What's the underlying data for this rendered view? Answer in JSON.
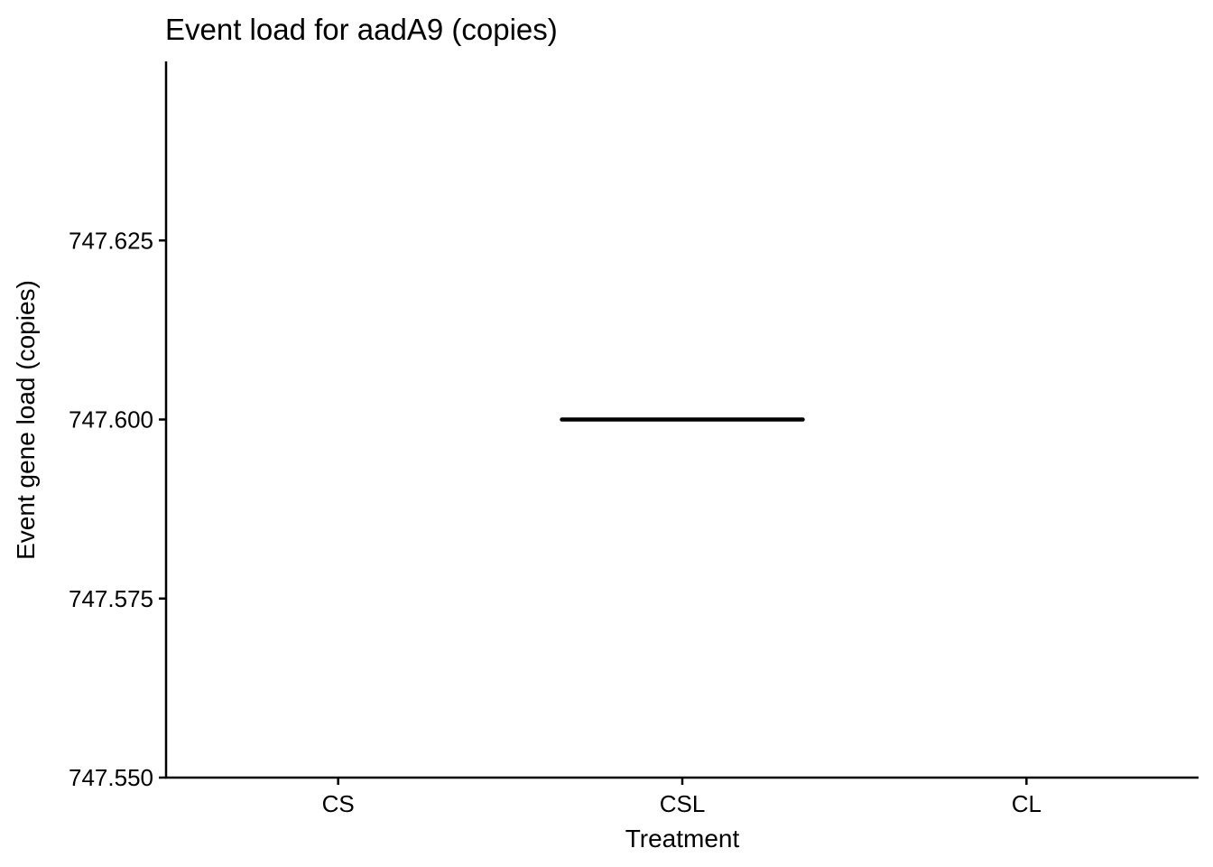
{
  "chart_data": {
    "type": "box",
    "title": "Event load for aadA9 (copies)",
    "xlabel": "Treatment",
    "ylabel": "Event gene load (copies)",
    "categories": [
      "CS",
      "CSL",
      "CL"
    ],
    "ylim": [
      747.55,
      747.65
    ],
    "yticks": [
      747.55,
      747.575,
      747.6,
      747.625
    ],
    "ytick_labels": [
      "747.550",
      "747.575",
      "747.600",
      "747.625"
    ],
    "boxes": [
      {
        "category": "CSL",
        "min": 747.6,
        "q1": 747.6,
        "median": 747.6,
        "q3": 747.6,
        "max": 747.6
      }
    ],
    "grid": false,
    "legend": "none",
    "colors": {
      "axis": "#000000",
      "box": "#000000",
      "background": "#ffffff"
    }
  }
}
